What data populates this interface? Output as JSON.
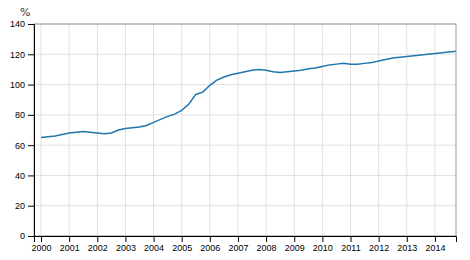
{
  "chart_data": {
    "type": "line",
    "ylabel": "%",
    "x": [
      2000.0,
      2000.25,
      2000.5,
      2000.75,
      2001.0,
      2001.25,
      2001.5,
      2001.75,
      2002.0,
      2002.25,
      2002.5,
      2002.75,
      2003.0,
      2003.25,
      2003.5,
      2003.75,
      2004.0,
      2004.25,
      2004.5,
      2004.75,
      2005.0,
      2005.25,
      2005.5,
      2005.75,
      2006.0,
      2006.25,
      2006.5,
      2006.75,
      2007.0,
      2007.25,
      2007.5,
      2007.75,
      2008.0,
      2008.25,
      2008.5,
      2008.75,
      2009.0,
      2009.25,
      2009.5,
      2009.75,
      2010.0,
      2010.25,
      2010.5,
      2010.75,
      2011.0,
      2011.25,
      2011.5,
      2011.75,
      2012.0,
      2012.25,
      2012.5,
      2012.75,
      2013.0,
      2013.25,
      2013.5,
      2013.75,
      2014.0,
      2014.25,
      2014.5,
      2014.75
    ],
    "values": [
      65.0,
      65.5,
      66.0,
      67.0,
      68.0,
      68.5,
      69.0,
      68.5,
      68.0,
      67.5,
      68.0,
      70.0,
      71.0,
      71.5,
      72.0,
      73.0,
      75.0,
      77.0,
      79.0,
      80.5,
      83.0,
      87.0,
      93.5,
      95.0,
      99.5,
      103.0,
      105.0,
      106.5,
      107.5,
      108.5,
      109.5,
      110.0,
      109.5,
      108.5,
      108.0,
      108.5,
      109.0,
      109.5,
      110.5,
      111.0,
      112.0,
      113.0,
      113.5,
      114.0,
      113.5,
      113.5,
      114.0,
      114.5,
      115.5,
      116.5,
      117.5,
      118.0,
      118.5,
      119.0,
      119.5,
      120.0,
      120.5,
      121.0,
      121.5,
      122.0
    ],
    "color": "#2176ae",
    "xlim": [
      1999.75,
      2014.75
    ],
    "ylim": [
      0,
      140
    ],
    "xticks": [
      2000,
      2001,
      2002,
      2003,
      2004,
      2005,
      2006,
      2007,
      2008,
      2009,
      2010,
      2011,
      2012,
      2013,
      2014
    ],
    "yticks": [
      0,
      20,
      40,
      60,
      80,
      100,
      120,
      140
    ],
    "grid": true
  }
}
